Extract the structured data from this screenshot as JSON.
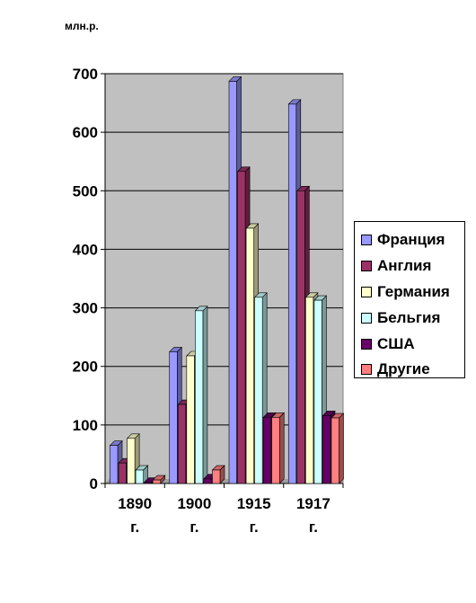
{
  "chart_data": {
    "type": "bar",
    "unit_label": "млн.р.",
    "categories": [
      "1890 г.",
      "1900 г.",
      "1915 г.",
      "1917 г."
    ],
    "series": [
      {
        "name": "Франция",
        "color": "#9999ff",
        "values": [
          65,
          225,
          687,
          648
        ]
      },
      {
        "name": "Англия",
        "color": "#993366",
        "values": [
          35,
          135,
          533,
          500
        ]
      },
      {
        "name": "Германия",
        "color": "#ffffcc",
        "values": [
          77,
          218,
          436,
          318
        ]
      },
      {
        "name": "Бельгия",
        "color": "#ccffff",
        "values": [
          23,
          295,
          318,
          313
        ]
      },
      {
        "name": "США",
        "color": "#660066",
        "values": [
          2,
          8,
          113,
          116
        ]
      },
      {
        "name": "Другие",
        "color": "#ff8080",
        "values": [
          6,
          23,
          113,
          112
        ]
      }
    ],
    "ylim": [
      0,
      700
    ],
    "yticks": [
      0,
      100,
      200,
      300,
      400,
      500,
      600,
      700
    ],
    "grid": true,
    "plot_background": "#c0c0c0",
    "legend_position": "right"
  }
}
